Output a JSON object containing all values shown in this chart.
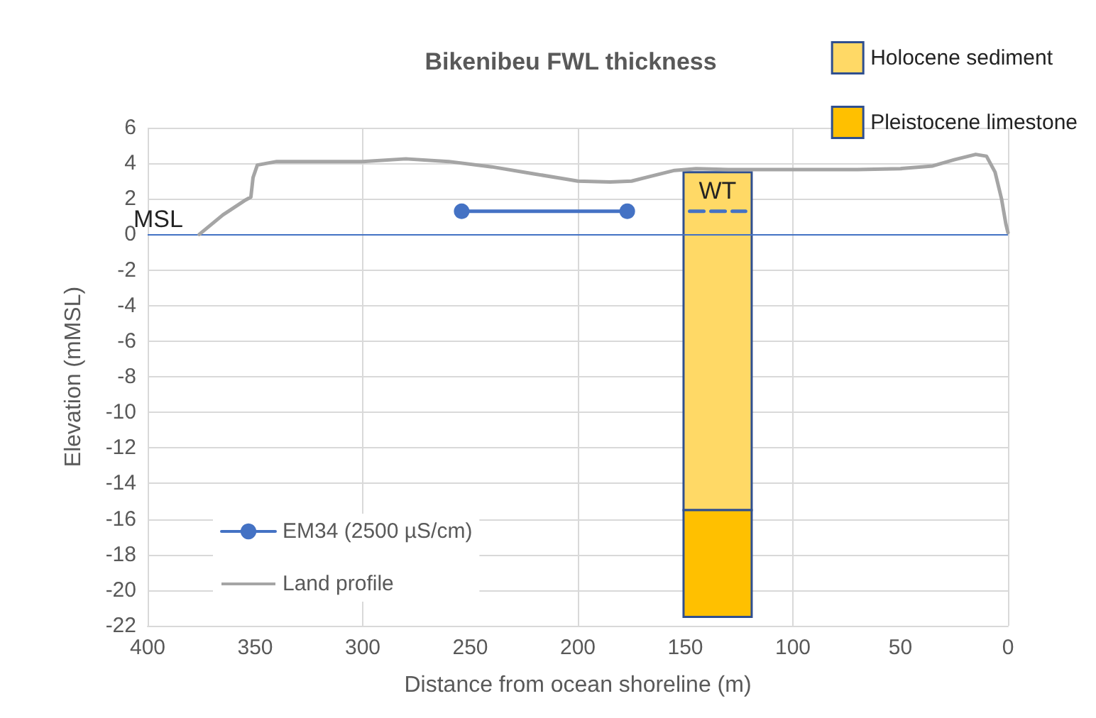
{
  "chart_data": {
    "type": "line",
    "title": "Bikenibeu FWL thickness",
    "xlabel": "Distance from ocean shoreline (m)",
    "ylabel": "Elevation (mMSL)",
    "xlim": [
      400,
      0
    ],
    "xticks": [
      400,
      350,
      300,
      250,
      200,
      150,
      100,
      50,
      0
    ],
    "ylim": [
      -22,
      6
    ],
    "yticks": [
      -22,
      -20,
      -18,
      -16,
      -14,
      -12,
      -10,
      -8,
      -6,
      -4,
      -2,
      0,
      2,
      4,
      6
    ],
    "grid": true,
    "legend": "top right",
    "series": [
      {
        "name": "Holocene sediment",
        "type": "bar",
        "color": "#ffd966",
        "x": [
          135
        ],
        "base": [
          -15.5
        ],
        "values": [
          19
        ]
      },
      {
        "name": "Pleistocene limestone",
        "type": "bar",
        "color": "#ffc000",
        "x": [
          135
        ],
        "base": [
          -21.5
        ],
        "values": [
          6
        ]
      },
      {
        "name": "EM34 (2500 µS/cm)",
        "color": "#4472c4",
        "marker": "circle",
        "x": [
          254,
          177
        ],
        "values": [
          1.3,
          1.3
        ]
      },
      {
        "name": "Land profile",
        "color": "#a5a5a5",
        "marker": "none",
        "x": [
          376,
          365,
          355,
          352,
          351,
          349,
          340,
          320,
          300,
          280,
          260,
          240,
          220,
          200,
          185,
          175,
          165,
          155,
          145,
          130,
          100,
          70,
          50,
          35,
          25,
          15,
          10,
          6,
          3,
          1,
          0
        ],
        "values": [
          0,
          1.1,
          1.9,
          2.1,
          3.2,
          3.9,
          4.1,
          4.1,
          4.1,
          4.25,
          4.1,
          3.8,
          3.4,
          3.0,
          2.95,
          3.0,
          3.3,
          3.6,
          3.7,
          3.65,
          3.65,
          3.65,
          3.7,
          3.85,
          4.2,
          4.5,
          4.4,
          3.5,
          2.0,
          0.6,
          0.1
        ]
      },
      {
        "name": "WT",
        "color": "#4472c4",
        "marker": "none",
        "line_style": "dashed",
        "x": [
          148,
          122
        ],
        "values": [
          1.3,
          1.3
        ]
      }
    ],
    "ref_lines": [
      {
        "axis": "y",
        "value": 0,
        "label": "MSL",
        "color": "#4472c4"
      }
    ]
  }
}
